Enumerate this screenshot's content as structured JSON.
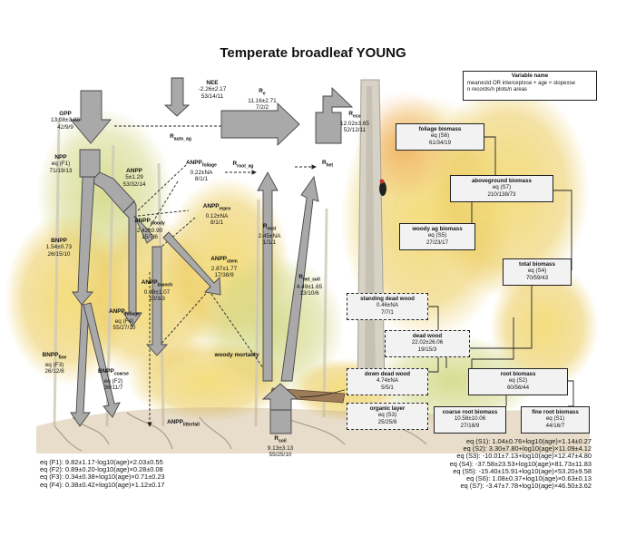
{
  "title": "Temperate broadleaf YOUNG",
  "legend": {
    "title": "Variable name",
    "line1": "mean±std OR intercept±se + age × slope±se",
    "line2": "n records/n plots/n areas"
  },
  "fluxes": {
    "gpp": {
      "name": "GPP",
      "value": "13.08±3.88",
      "n": "42/9/9"
    },
    "nee": {
      "name": "NEE",
      "value": "-2.26±2.17",
      "n": "53/14/11"
    },
    "re": {
      "name": "R",
      "sub": "e",
      "value": "11.16±2.71",
      "n": "7/2/2"
    },
    "reco": {
      "name": "R",
      "sub": "eco",
      "value": "12.02±3.65",
      "n": "52/12/11"
    },
    "rauto_ag": {
      "name": "R",
      "sub": "auto_ag"
    },
    "npp": {
      "name": "NPP",
      "eq": "eq (F1)",
      "n": "71/19/13"
    },
    "anpp": {
      "name": "ANPP",
      "value": "5±1.29",
      "n": "53/32/14"
    },
    "anpp_foliage_top": {
      "name": "ANPP",
      "sub": "foliage",
      "value": "0.22±NA",
      "n": "8/1/1"
    },
    "rroot_ag": {
      "name": "R",
      "sub": "root_ag"
    },
    "rhet": {
      "name": "R",
      "sub": "het"
    },
    "anpp_repro": {
      "name": "ANPP",
      "sub": "repro",
      "value": "0.12±NA",
      "n": "8/1/1"
    },
    "anpp_woody": {
      "name": "ANPP",
      "sub": "woody",
      "value": "2.42±0.90",
      "n": "15/7/6"
    },
    "anpp_stem": {
      "name": "ANPP",
      "sub": "stem",
      "value": "2.87±1.77",
      "n": "17/38/9"
    },
    "bnpp": {
      "name": "BNPP",
      "value": "1.54±0.73",
      "n": "26/15/10"
    },
    "anpp_branch": {
      "name": "ANPP",
      "sub": "branch",
      "value": "0.99±1.07",
      "n": "10/3/3"
    },
    "anpp_foliage": {
      "name": "ANPP",
      "sub": "foliage",
      "eq": "eq (F4)",
      "n": "55/27/10"
    },
    "rroot": {
      "name": "R",
      "sub": "root",
      "value": "2.45±NA",
      "n": "1/1/1"
    },
    "rhet_soil": {
      "name": "R",
      "sub": "het_soil",
      "value": "4.49±1.65",
      "n": "13/10/6"
    },
    "woody_mortality": "woody mortality",
    "bnpp_fine": {
      "name": "BNPP",
      "sub": "fine",
      "eq": "eq (F3)",
      "n": "26/12/8"
    },
    "bnpp_coarse": {
      "name": "BNPP",
      "sub": "coarse",
      "eq": "eq (F2)",
      "n": "36/11/7"
    },
    "anpp_litterfall": {
      "name": "ANPP",
      "sub": "litterfall"
    },
    "rsoil": {
      "name": "R",
      "sub": "soil",
      "value": "9.13±3.13",
      "n": "55/25/10"
    }
  },
  "stocks": {
    "foliage_biomass": {
      "name": "foliage biomass",
      "eq": "eq (S6)",
      "n": "61/34/19"
    },
    "aboveground_biomass": {
      "name": "aboveground biomass",
      "eq": "eq (S7)",
      "n": "210/138/73"
    },
    "woody_ag_biomass": {
      "name": "woody ag biomass",
      "eq": "eq (S5)",
      "n": "27/23/17"
    },
    "total_biomass": {
      "name": "total biomass",
      "eq": "eq (S4)",
      "n": "70/59/43"
    },
    "standing_dead_wood": {
      "name": "standing dead wood",
      "value": "0.46±NA",
      "n": "7/7/1"
    },
    "dead_wood": {
      "name": "dead wood",
      "value": "22.02±26.06",
      "n": "19/15/3"
    },
    "down_dead_wood": {
      "name": "down dead wood",
      "value": "4.74±NA",
      "n": "5/5/1"
    },
    "root_biomass": {
      "name": "root biomass",
      "eq": "eq (S2)",
      "n": "60/56/44"
    },
    "organic_layer": {
      "name": "organic layer",
      "eq": "eq (S3)",
      "n": "25/25/8"
    },
    "coarse_root_biomass": {
      "name": "coarse root biomass",
      "value": "10.58±10.06",
      "n": "27/18/9"
    },
    "fine_root_biomass": {
      "name": "fine root biomass",
      "eq": "eq (S1)",
      "n": "44/16/7"
    }
  },
  "equations_left": [
    "eq (F1): 9.82±1.17-log10(age)×2.03±0.55",
    "eq (F2): 0.89±0.20-log10(age)×0.28±0.08",
    "eq (F3): 0.34±0.38+log10(age)×0.71±0.23",
    "eq (F4): 0.38±0.42+log10(age)×1.12±0.17"
  ],
  "equations_right": [
    "eq (S1): 1.04±0.76+log10(age)×1.14±0.27",
    "eq (S2): 3.30±7.80+log10(age)×11.09±4.12",
    "eq (S3): -10.01±7.13+log10(age)×12.47±4.80",
    "eq (S4): -37.58±23.53+log10(age)×81.73±11.83",
    "eq (S5): -15.40±15.91+log10(age)×53.20±9.58",
    "eq (S6): 1.08±0.37+log10(age)×0.63±0.13",
    "eq (S7): -3.47±7.78+log10(age)×46.50±3.62"
  ],
  "colors": {
    "arrow_fill": "#a9a9a9",
    "arrow_stroke": "#444444",
    "box_fill": "#f2f2f2",
    "foliage": "#e8c84a",
    "trunk": "#c9c2b3"
  }
}
